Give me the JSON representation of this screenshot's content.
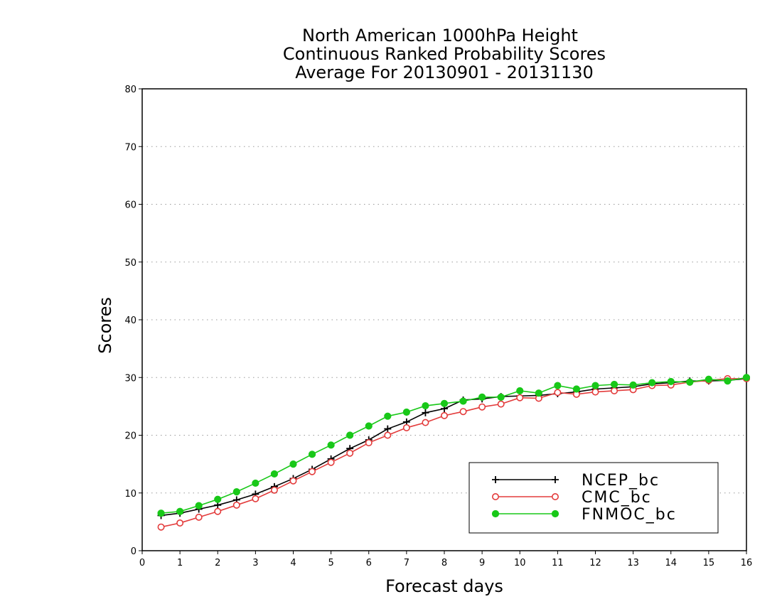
{
  "chart_data": {
    "type": "line",
    "title": "North American 1000hPa Height",
    "subtitle": "Continuous Ranked Probability Scores",
    "subtitle2": "Average For 20130901 - 20131130",
    "xlabel": "Forecast days",
    "ylabel": "Scores",
    "xlim": [
      0,
      16
    ],
    "ylim": [
      0,
      80
    ],
    "xticks": [
      0,
      1,
      2,
      3,
      4,
      5,
      6,
      7,
      8,
      9,
      10,
      11,
      12,
      13,
      14,
      15,
      16
    ],
    "yticks": [
      0,
      10,
      20,
      30,
      40,
      50,
      60,
      70,
      80
    ],
    "grid": "horizontal dotted",
    "legend_position": "bottom-right",
    "x": [
      0.5,
      1,
      1.5,
      2,
      2.5,
      3,
      3.5,
      4,
      4.5,
      5,
      5.5,
      6,
      6.5,
      7,
      7.5,
      8,
      8.5,
      9,
      9.5,
      10,
      10.5,
      11,
      11.5,
      12,
      12.5,
      13,
      13.5,
      14,
      14.5,
      15,
      15.5,
      16
    ],
    "series": [
      {
        "name": "NCEP_bc",
        "color": "#000000",
        "marker": "plus",
        "values": [
          6.1,
          6.5,
          7.2,
          7.9,
          8.8,
          9.8,
          11.1,
          12.5,
          14.1,
          15.9,
          17.7,
          19.2,
          21.1,
          22.3,
          23.9,
          24.6,
          26.1,
          26.3,
          26.7,
          26.8,
          26.9,
          27.2,
          27.5,
          28.0,
          28.2,
          28.4,
          28.9,
          29.1,
          29.4,
          29.4,
          29.5,
          29.8
        ]
      },
      {
        "name": "CMC_bc",
        "color": "#e33b3b",
        "marker": "open-circle",
        "values": [
          4.1,
          4.8,
          5.8,
          6.8,
          7.9,
          9.0,
          10.5,
          12.1,
          13.7,
          15.3,
          16.9,
          18.7,
          20.0,
          21.3,
          22.2,
          23.4,
          24.1,
          24.9,
          25.4,
          26.5,
          26.4,
          27.4,
          27.1,
          27.5,
          27.7,
          27.9,
          28.6,
          28.7,
          29.2,
          29.5,
          29.8,
          29.8
        ]
      },
      {
        "name": "FNMOC_bc",
        "color": "#18c818",
        "marker": "filled-circle",
        "values": [
          6.5,
          6.8,
          7.8,
          8.9,
          10.2,
          11.7,
          13.3,
          15.0,
          16.7,
          18.3,
          20.0,
          21.6,
          23.3,
          24.0,
          25.1,
          25.5,
          25.9,
          26.6,
          26.6,
          27.7,
          27.3,
          28.6,
          28.0,
          28.6,
          28.8,
          28.7,
          29.1,
          29.3,
          29.2,
          29.7,
          29.4,
          30.0
        ]
      }
    ]
  }
}
